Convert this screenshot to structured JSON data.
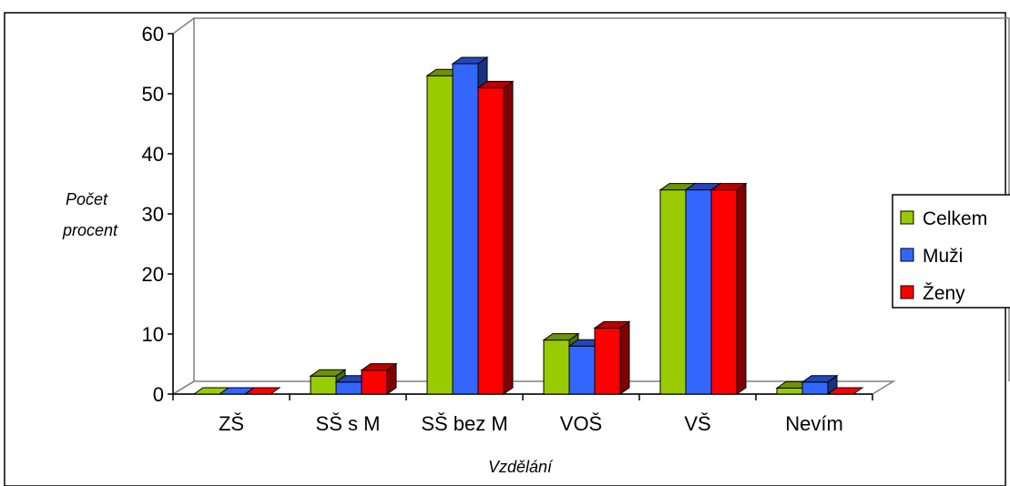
{
  "chart_data": {
    "type": "bar",
    "categories": [
      "ZŠ",
      "SŠ s M",
      "SŠ bez M",
      "VOŠ",
      "VŠ",
      "Nevím"
    ],
    "series": [
      {
        "name": "Celkem",
        "values": [
          0,
          3,
          53,
          9,
          34,
          1
        ]
      },
      {
        "name": "Muži",
        "values": [
          0,
          2,
          55,
          8,
          34,
          2
        ]
      },
      {
        "name": "Ženy",
        "values": [
          0,
          4,
          51,
          11,
          34,
          0
        ]
      }
    ],
    "ylabel_line1": "Počet",
    "ylabel_line2": "procent",
    "xlabel": "Vzdělání",
    "ylim": [
      0,
      60
    ],
    "yticks": [
      0,
      10,
      20,
      30,
      40,
      50,
      60
    ],
    "three_d": true,
    "grid": false,
    "legend_position": "right",
    "colors": {
      "Celkem": {
        "front": "#99CC00",
        "top": "#6E9400",
        "side": "#4E6A00"
      },
      "Muži": {
        "front": "#3366FF",
        "top": "#2447B8",
        "side": "#1A3380"
      },
      "Ženy": {
        "front": "#FF0000",
        "top": "#B80000",
        "side": "#800000"
      }
    }
  }
}
